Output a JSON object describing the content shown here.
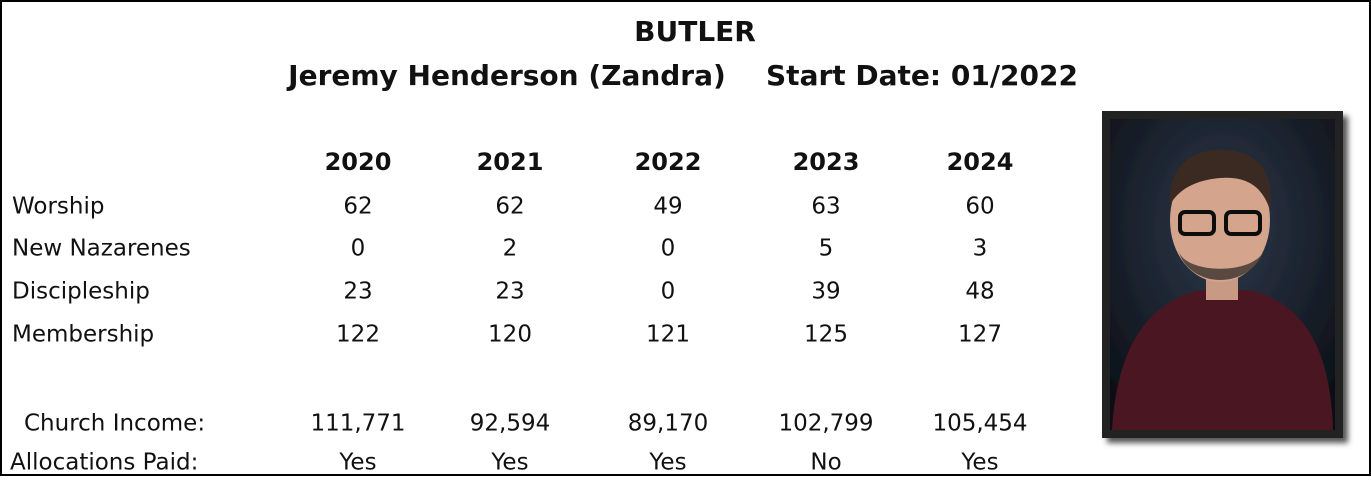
{
  "header": {
    "title": "BUTLER",
    "pastor": "Jeremy Henderson (Zandra)",
    "start_date": "Start Date: 01/2022"
  },
  "table": {
    "columns": [
      "2020",
      "2021",
      "2022",
      "2023",
      "2024"
    ],
    "rows": [
      {
        "label": "Worship",
        "values": [
          "62",
          "62",
          "49",
          "63",
          "60"
        ]
      },
      {
        "label": "New Nazarenes",
        "values": [
          "0",
          "2",
          "0",
          "5",
          "3"
        ]
      },
      {
        "label": "Discipleship",
        "values": [
          "23",
          "23",
          "0",
          "39",
          "48"
        ]
      },
      {
        "label": "Membership",
        "values": [
          "122",
          "120",
          "121",
          "125",
          "127"
        ]
      },
      {
        "label": "Church Income:",
        "values": [
          "111,771",
          "92,594",
          "89,170",
          "102,799",
          "105,454"
        ]
      },
      {
        "label": "Allocations Paid:",
        "values": [
          "Yes",
          "Yes",
          "Yes",
          "No",
          "Yes"
        ]
      }
    ]
  }
}
